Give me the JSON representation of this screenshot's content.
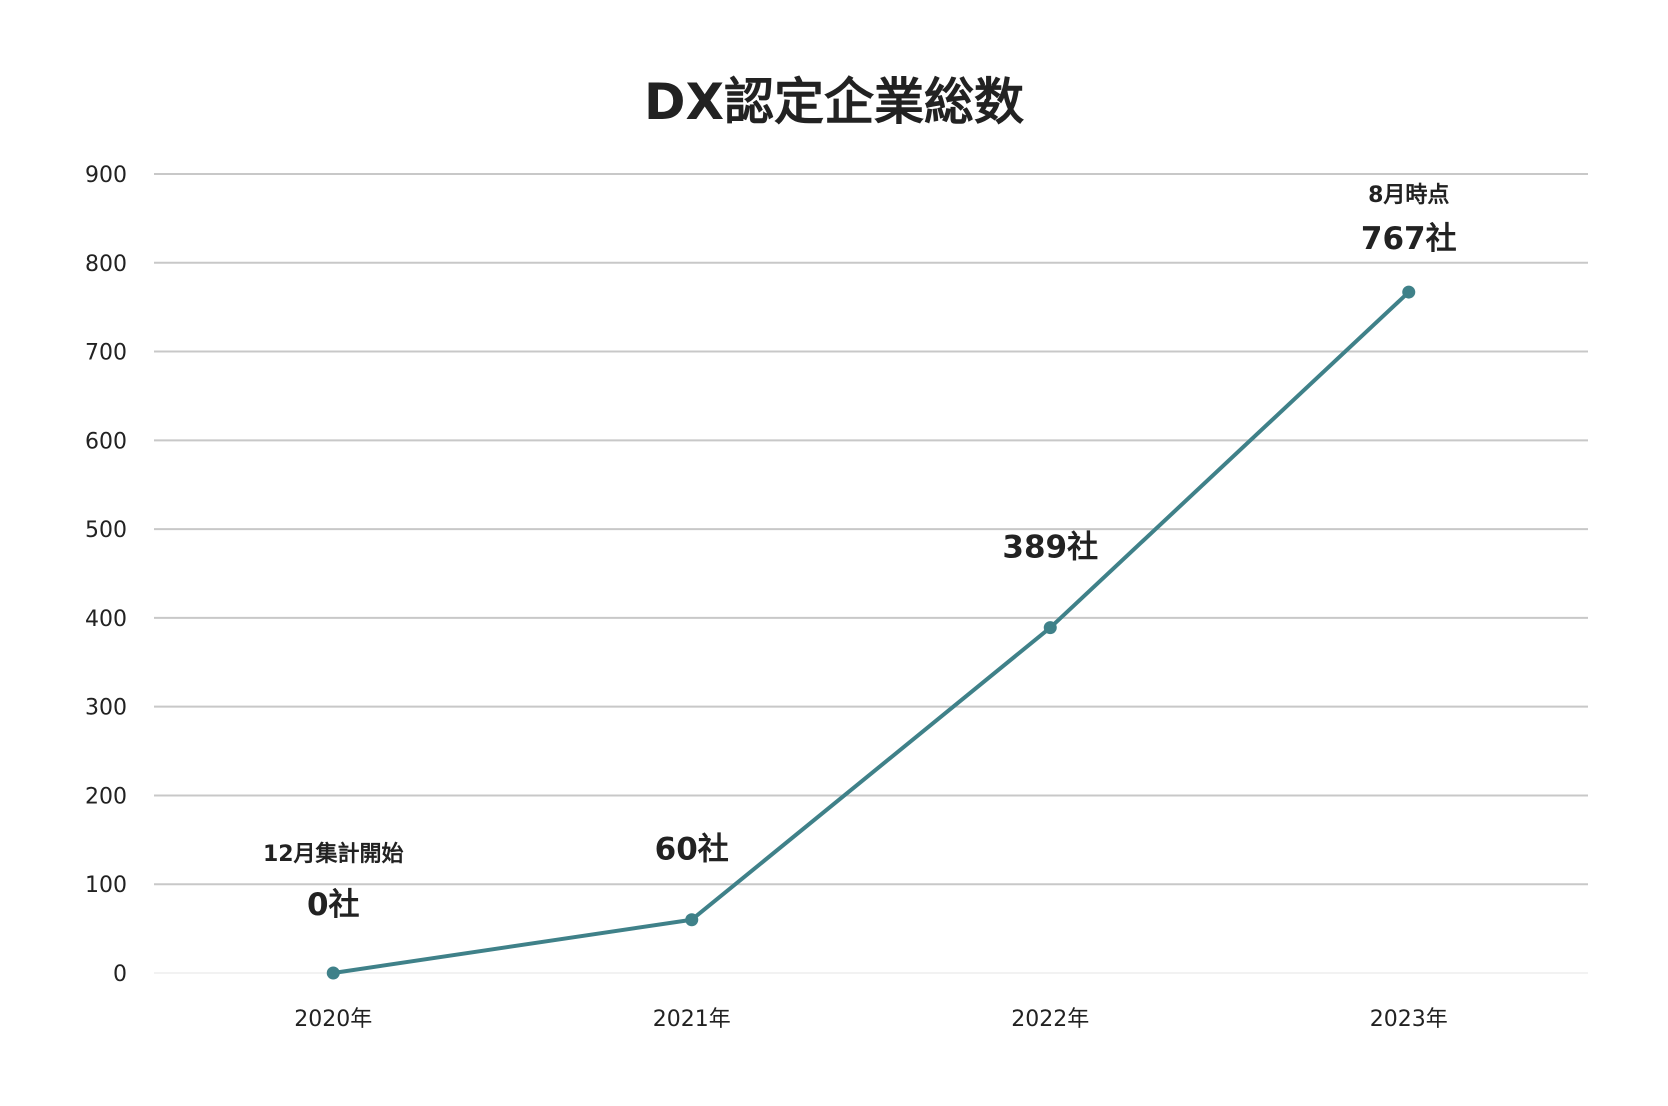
{
  "chart_data": {
    "type": "line",
    "title": "DX認定企業総数",
    "xlabel": "",
    "ylabel": "",
    "categories": [
      "2020年",
      "2021年",
      "2022年",
      "2023年"
    ],
    "series": [
      {
        "name": "DX認定企業総数",
        "values": [
          0,
          60,
          389,
          767
        ],
        "color": "#3f8189"
      }
    ],
    "ylim": [
      0,
      900
    ],
    "yticks": [
      "0",
      "100",
      "200",
      "300",
      "400",
      "500",
      "600",
      "700",
      "800",
      "900"
    ],
    "grid": true,
    "legend": "none",
    "annotations": [
      {
        "category": "2020年",
        "note": "12月集計開始",
        "value_label": "0社"
      },
      {
        "category": "2021年",
        "note": "",
        "value_label": "60社"
      },
      {
        "category": "2022年",
        "note": "",
        "value_label": "389社"
      },
      {
        "category": "2023年",
        "note": "8月時点",
        "value_label": "767社"
      }
    ]
  },
  "colors": {
    "line": "#3f8189",
    "grid": "#c8c8c8",
    "text": "#222222"
  }
}
